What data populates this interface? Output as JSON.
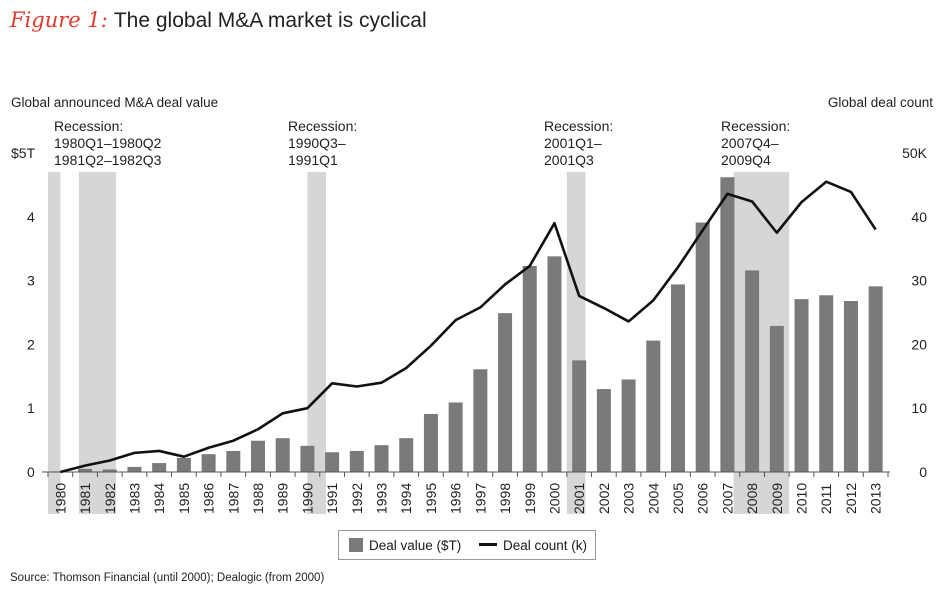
{
  "figure": {
    "label": "Figure 1:",
    "title": "The global M&A market is cyclical"
  },
  "chart_data": {
    "type": "bar",
    "y_left_label": "Global announced M&A deal value",
    "y_right_label": "Global deal count",
    "y_left_ticks": [
      "0",
      "1",
      "2",
      "3",
      "4",
      "$5T"
    ],
    "y_right_ticks": [
      "0",
      "10",
      "20",
      "30",
      "40",
      "50K"
    ],
    "y_left_lim": [
      0,
      5
    ],
    "y_right_lim": [
      0,
      50
    ],
    "categories": [
      "1980",
      "1981",
      "1982",
      "1983",
      "1984",
      "1985",
      "1986",
      "1987",
      "1988",
      "1989",
      "1990",
      "1991",
      "1992",
      "1993",
      "1994",
      "1995",
      "1996",
      "1997",
      "1998",
      "1999",
      "2000",
      "2001",
      "2002",
      "2003",
      "2004",
      "2005",
      "2006",
      "2007",
      "2008",
      "2009",
      "2010",
      "2011",
      "2012",
      "2013"
    ],
    "series": [
      {
        "name": "Deal value ($T)",
        "type": "bar",
        "axis": "left",
        "color": "#7a7a7a",
        "values": [
          0.01,
          0.05,
          0.04,
          0.08,
          0.14,
          0.22,
          0.28,
          0.33,
          0.49,
          0.53,
          0.41,
          0.31,
          0.33,
          0.42,
          0.53,
          0.91,
          1.09,
          1.61,
          2.49,
          3.23,
          3.38,
          1.75,
          1.3,
          1.45,
          2.06,
          2.94,
          3.91,
          4.62,
          3.16,
          2.29,
          2.71,
          2.77,
          2.68,
          2.91
        ]
      },
      {
        "name": "Deal count (k)",
        "type": "line",
        "axis": "right",
        "color": "#111111",
        "values": [
          0,
          1.0,
          1.8,
          3.0,
          3.3,
          2.4,
          3.8,
          4.9,
          6.7,
          9.2,
          10.0,
          13.9,
          13.4,
          14.0,
          16.3,
          19.8,
          23.8,
          25.8,
          29.4,
          32.3,
          39.0,
          27.6,
          25.7,
          23.6,
          26.9,
          32.1,
          37.9,
          43.6,
          42.4,
          37.5,
          42.3,
          45.5,
          43.9,
          38.0
        ]
      }
    ],
    "recessions": [
      {
        "label_lines": [
          "Recession:",
          "1980Q1–1980Q2",
          "1981Q2–1982Q3"
        ],
        "shaded": [
          [
            1980.0,
            1980.5
          ],
          [
            1981.25,
            1982.75
          ]
        ]
      },
      {
        "label_lines": [
          "Recession:",
          "1990Q3–",
          "1991Q1"
        ],
        "shaded": [
          [
            1990.5,
            1991.25
          ]
        ]
      },
      {
        "label_lines": [
          "Recession:",
          "2001Q1–",
          "2001Q3"
        ],
        "shaded": [
          [
            2001.0,
            2001.75
          ]
        ]
      },
      {
        "label_lines": [
          "Recession:",
          "2007Q4–",
          "2009Q4"
        ],
        "shaded": [
          [
            2007.75,
            2010.0
          ]
        ]
      }
    ],
    "legend": [
      "Deal value ($T)",
      "Deal count (k)"
    ],
    "legend_position": "bottom-center",
    "grid": false
  },
  "source": "Source: Thomson Financial (until 2000); Dealogic (from 2000)"
}
